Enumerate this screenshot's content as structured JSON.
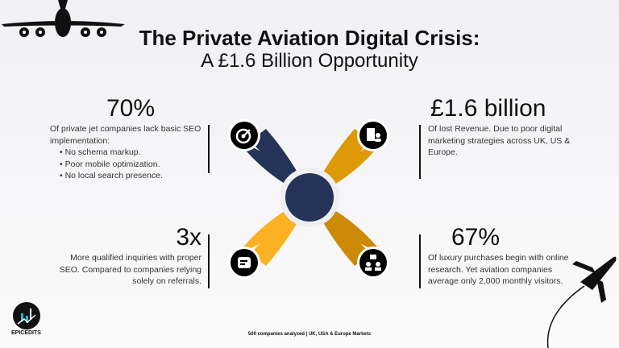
{
  "title": {
    "line1": "The Private Aviation Digital Crisis:",
    "line2": "A £1.6 Billion Opportunity"
  },
  "stats": [
    {
      "value": "70%",
      "text": "Of private jet companies lack basic SEO implementation:",
      "bullets": [
        "No schema markup.",
        "Poor mobile optimization.",
        "No local search presence."
      ],
      "icon": "target-icon"
    },
    {
      "value": "£1.6 billion",
      "text": "Of lost Revenue. Due to poor digital marketing strategies across UK, US & Europe.",
      "icon": "building-person-icon"
    },
    {
      "value": "3x",
      "text": "More qualified inquiries with proper SEO. Compared to companies relying solely on referrals.",
      "icon": "chat-icon"
    },
    {
      "value": "67%",
      "text": "Of luxury purchases begin with online research. Yet aviation companies average only 2,000 monthly visitors.",
      "icon": "org-chart-icon"
    }
  ],
  "footer": "500 companies analyzed | UK, USA & Europe Markets",
  "logo": {
    "text": "EPICEDITS"
  },
  "colors": {
    "navy": "#253358",
    "orange": "#de9a06",
    "yellow": "#fbb122",
    "dark_orange": "#cc8a06"
  }
}
